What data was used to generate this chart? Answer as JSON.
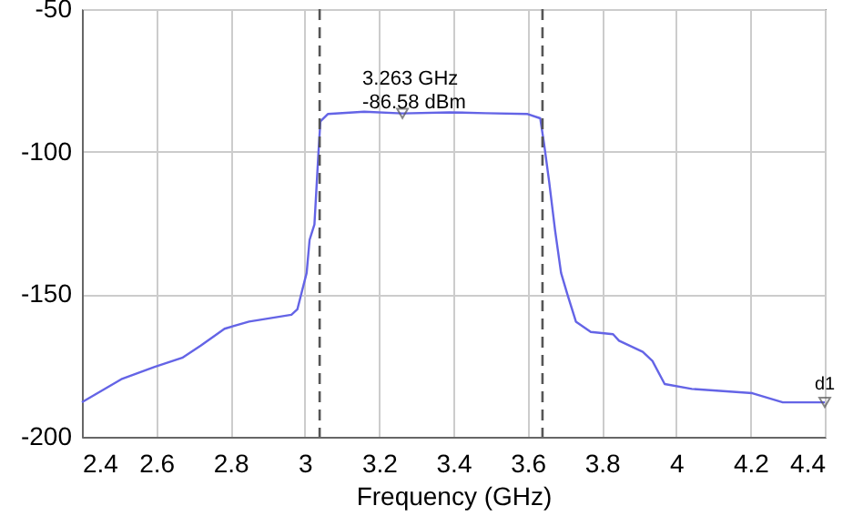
{
  "chart_data": {
    "type": "line",
    "xlabel": "Frequency (GHz)",
    "xlim": [
      2.4,
      4.4
    ],
    "xticks": [
      2.4,
      2.6,
      2.8,
      3,
      3.2,
      3.4,
      3.6,
      3.8,
      4,
      4.2,
      4.4
    ],
    "ylim": [
      -200,
      -50
    ],
    "yticks": [
      -200,
      -150,
      -100,
      -50
    ],
    "grid": true,
    "marker": "none",
    "line_style": "solid",
    "series": [
      {
        "color": "#6464e6",
        "x": [
          2.4,
          2.506,
          2.596,
          2.67,
          2.72,
          2.784,
          2.85,
          2.964,
          2.98,
          3.005,
          3.013,
          3.026,
          3.037,
          3.042,
          3.062,
          3.16,
          3.263,
          3.389,
          3.487,
          3.6,
          3.634,
          3.645,
          3.658,
          3.674,
          3.69,
          3.707,
          3.73,
          3.77,
          3.83,
          3.846,
          3.91,
          3.936,
          3.969,
          4.042,
          4.205,
          4.287,
          4.4
        ],
        "values": [
          -187.9,
          -179.8,
          -175.5,
          -172.3,
          -168,
          -162.1,
          -159.6,
          -157.2,
          -155.3,
          -142.5,
          -130.9,
          -125.5,
          -100,
          -89.4,
          -86.8,
          -86,
          -86.58,
          -86.2,
          -86.5,
          -86.8,
          -88.3,
          -97.9,
          -110.6,
          -127.7,
          -142.5,
          -150,
          -159.6,
          -163.2,
          -164,
          -166.3,
          -170.2,
          -173.4,
          -181.5,
          -183.2,
          -184.7,
          -187.9,
          -187.9
        ]
      }
    ],
    "ref_lines": [
      {
        "axis": "x",
        "value": 3.04,
        "label": null,
        "color": "#555555",
        "line_style": "dashed"
      },
      {
        "axis": "x",
        "value": 3.64,
        "label": null,
        "color": "#555555",
        "line_style": "dashed"
      }
    ],
    "annotations": [
      {
        "text": "3.263 GHz\n-86.58 dBm",
        "x": 3.263,
        "y": -86.58
      },
      {
        "text": "d1",
        "x": 4.4,
        "y": -187.9
      }
    ]
  }
}
